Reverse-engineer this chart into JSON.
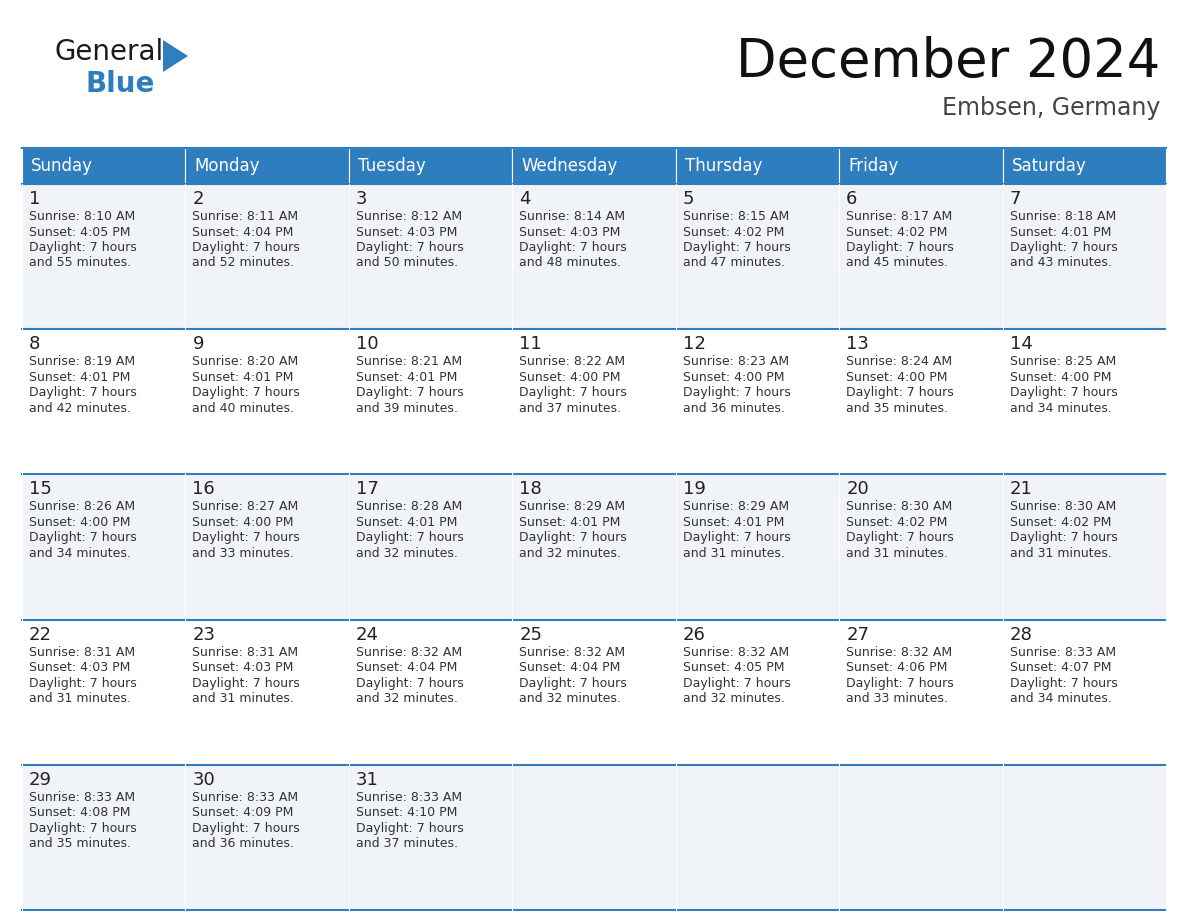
{
  "title": "December 2024",
  "subtitle": "Embsen, Germany",
  "header_bg": "#2E7DBE",
  "header_text": "#FFFFFF",
  "day_names": [
    "Sunday",
    "Monday",
    "Tuesday",
    "Wednesday",
    "Thursday",
    "Friday",
    "Saturday"
  ],
  "row_bg_light": "#F0F4F8",
  "row_bg_white": "#FFFFFF",
  "number_color": "#222222",
  "text_color": "#333333",
  "calendar": [
    [
      {
        "day": 1,
        "sunrise": "8:10 AM",
        "sunset": "4:05 PM",
        "daylight": "7 hours and 55 minutes"
      },
      {
        "day": 2,
        "sunrise": "8:11 AM",
        "sunset": "4:04 PM",
        "daylight": "7 hours and 52 minutes"
      },
      {
        "day": 3,
        "sunrise": "8:12 AM",
        "sunset": "4:03 PM",
        "daylight": "7 hours and 50 minutes"
      },
      {
        "day": 4,
        "sunrise": "8:14 AM",
        "sunset": "4:03 PM",
        "daylight": "7 hours and 48 minutes"
      },
      {
        "day": 5,
        "sunrise": "8:15 AM",
        "sunset": "4:02 PM",
        "daylight": "7 hours and 47 minutes"
      },
      {
        "day": 6,
        "sunrise": "8:17 AM",
        "sunset": "4:02 PM",
        "daylight": "7 hours and 45 minutes"
      },
      {
        "day": 7,
        "sunrise": "8:18 AM",
        "sunset": "4:01 PM",
        "daylight": "7 hours and 43 minutes"
      }
    ],
    [
      {
        "day": 8,
        "sunrise": "8:19 AM",
        "sunset": "4:01 PM",
        "daylight": "7 hours and 42 minutes"
      },
      {
        "day": 9,
        "sunrise": "8:20 AM",
        "sunset": "4:01 PM",
        "daylight": "7 hours and 40 minutes"
      },
      {
        "day": 10,
        "sunrise": "8:21 AM",
        "sunset": "4:01 PM",
        "daylight": "7 hours and 39 minutes"
      },
      {
        "day": 11,
        "sunrise": "8:22 AM",
        "sunset": "4:00 PM",
        "daylight": "7 hours and 37 minutes"
      },
      {
        "day": 12,
        "sunrise": "8:23 AM",
        "sunset": "4:00 PM",
        "daylight": "7 hours and 36 minutes"
      },
      {
        "day": 13,
        "sunrise": "8:24 AM",
        "sunset": "4:00 PM",
        "daylight": "7 hours and 35 minutes"
      },
      {
        "day": 14,
        "sunrise": "8:25 AM",
        "sunset": "4:00 PM",
        "daylight": "7 hours and 34 minutes"
      }
    ],
    [
      {
        "day": 15,
        "sunrise": "8:26 AM",
        "sunset": "4:00 PM",
        "daylight": "7 hours and 34 minutes"
      },
      {
        "day": 16,
        "sunrise": "8:27 AM",
        "sunset": "4:00 PM",
        "daylight": "7 hours and 33 minutes"
      },
      {
        "day": 17,
        "sunrise": "8:28 AM",
        "sunset": "4:01 PM",
        "daylight": "7 hours and 32 minutes"
      },
      {
        "day": 18,
        "sunrise": "8:29 AM",
        "sunset": "4:01 PM",
        "daylight": "7 hours and 32 minutes"
      },
      {
        "day": 19,
        "sunrise": "8:29 AM",
        "sunset": "4:01 PM",
        "daylight": "7 hours and 31 minutes"
      },
      {
        "day": 20,
        "sunrise": "8:30 AM",
        "sunset": "4:02 PM",
        "daylight": "7 hours and 31 minutes"
      },
      {
        "day": 21,
        "sunrise": "8:30 AM",
        "sunset": "4:02 PM",
        "daylight": "7 hours and 31 minutes"
      }
    ],
    [
      {
        "day": 22,
        "sunrise": "8:31 AM",
        "sunset": "4:03 PM",
        "daylight": "7 hours and 31 minutes"
      },
      {
        "day": 23,
        "sunrise": "8:31 AM",
        "sunset": "4:03 PM",
        "daylight": "7 hours and 31 minutes"
      },
      {
        "day": 24,
        "sunrise": "8:32 AM",
        "sunset": "4:04 PM",
        "daylight": "7 hours and 32 minutes"
      },
      {
        "day": 25,
        "sunrise": "8:32 AM",
        "sunset": "4:04 PM",
        "daylight": "7 hours and 32 minutes"
      },
      {
        "day": 26,
        "sunrise": "8:32 AM",
        "sunset": "4:05 PM",
        "daylight": "7 hours and 32 minutes"
      },
      {
        "day": 27,
        "sunrise": "8:32 AM",
        "sunset": "4:06 PM",
        "daylight": "7 hours and 33 minutes"
      },
      {
        "day": 28,
        "sunrise": "8:33 AM",
        "sunset": "4:07 PM",
        "daylight": "7 hours and 34 minutes"
      }
    ],
    [
      {
        "day": 29,
        "sunrise": "8:33 AM",
        "sunset": "4:08 PM",
        "daylight": "7 hours and 35 minutes"
      },
      {
        "day": 30,
        "sunrise": "8:33 AM",
        "sunset": "4:09 PM",
        "daylight": "7 hours and 36 minutes"
      },
      {
        "day": 31,
        "sunrise": "8:33 AM",
        "sunset": "4:10 PM",
        "daylight": "7 hours and 37 minutes"
      },
      null,
      null,
      null,
      null
    ]
  ],
  "logo_general_color": "#1A1A1A",
  "logo_blue_color": "#2E7DBE",
  "fig_width": 11.88,
  "fig_height": 9.18
}
